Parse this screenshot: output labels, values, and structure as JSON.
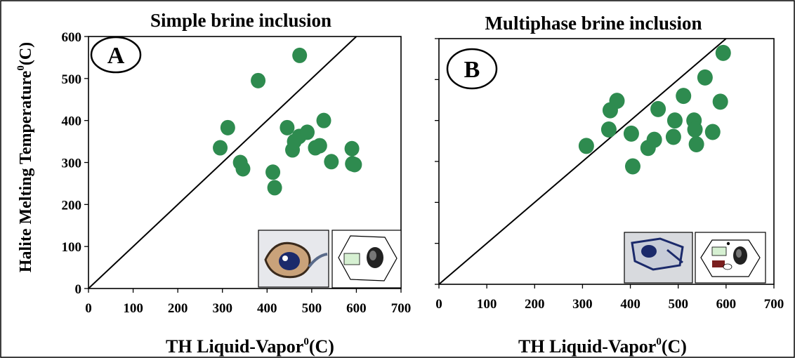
{
  "figure": {
    "ylabel": "Halite Melting Temperature",
    "ylabel_sup": "0",
    "ylabel_unit": "(C)",
    "marker_color": "#2e8b4f"
  },
  "chart_data": [
    {
      "type": "scatter",
      "panel": "A",
      "title": "Simple brine inclusion",
      "xlabel": "TH Liquid-Vapor",
      "xlabel_sup": "0",
      "xlabel_unit": "(C)",
      "xlim": [
        0,
        700
      ],
      "ylim": [
        0,
        600
      ],
      "xticks": [
        "0",
        "100",
        "200",
        "300",
        "400",
        "500",
        "600",
        "700"
      ],
      "yticks": [
        "0",
        "100",
        "200",
        "300",
        "400",
        "500",
        "600"
      ],
      "reference_line": "y = x",
      "inset_icons": [
        "fluid-inclusion-photo",
        "inclusion-schematic-icon"
      ],
      "series": [
        {
          "points": [
            {
              "x": 295,
              "y": 335
            },
            {
              "x": 312,
              "y": 383
            },
            {
              "x": 340,
              "y": 300
            },
            {
              "x": 346,
              "y": 285
            },
            {
              "x": 380,
              "y": 495
            },
            {
              "x": 413,
              "y": 277
            },
            {
              "x": 417,
              "y": 240
            },
            {
              "x": 445,
              "y": 383
            },
            {
              "x": 457,
              "y": 330
            },
            {
              "x": 461,
              "y": 350
            },
            {
              "x": 473,
              "y": 555
            },
            {
              "x": 472,
              "y": 362
            },
            {
              "x": 490,
              "y": 372
            },
            {
              "x": 508,
              "y": 335
            },
            {
              "x": 518,
              "y": 340
            },
            {
              "x": 527,
              "y": 400
            },
            {
              "x": 544,
              "y": 302
            },
            {
              "x": 590,
              "y": 333
            },
            {
              "x": 591,
              "y": 297
            },
            {
              "x": 596,
              "y": 295
            }
          ]
        }
      ]
    },
    {
      "type": "scatter",
      "panel": "B",
      "title": "Multiphase brine inclusion",
      "xlabel": "TH Liquid-Vapor",
      "xlabel_sup": "0",
      "xlabel_unit": "(C)",
      "xlim": [
        0,
        700
      ],
      "ylim": [
        0,
        600
      ],
      "xticks": [
        "0",
        "100",
        "200",
        "300",
        "400",
        "500",
        "600",
        "700"
      ],
      "yticks": [
        "0",
        "100",
        "200",
        "300",
        "400",
        "500",
        "600"
      ],
      "reference_line": "y = x",
      "inset_icons": [
        "fluid-inclusion-photo",
        "inclusion-schematic-icon"
      ],
      "series": [
        {
          "points": [
            {
              "x": 308,
              "y": 338
            },
            {
              "x": 355,
              "y": 378
            },
            {
              "x": 358,
              "y": 425
            },
            {
              "x": 372,
              "y": 448
            },
            {
              "x": 402,
              "y": 368
            },
            {
              "x": 405,
              "y": 288
            },
            {
              "x": 437,
              "y": 333
            },
            {
              "x": 450,
              "y": 353
            },
            {
              "x": 458,
              "y": 428
            },
            {
              "x": 490,
              "y": 360
            },
            {
              "x": 493,
              "y": 400
            },
            {
              "x": 511,
              "y": 460
            },
            {
              "x": 533,
              "y": 400
            },
            {
              "x": 535,
              "y": 378
            },
            {
              "x": 538,
              "y": 342
            },
            {
              "x": 556,
              "y": 505
            },
            {
              "x": 572,
              "y": 372
            },
            {
              "x": 588,
              "y": 446
            },
            {
              "x": 594,
              "y": 565
            }
          ]
        }
      ]
    }
  ]
}
